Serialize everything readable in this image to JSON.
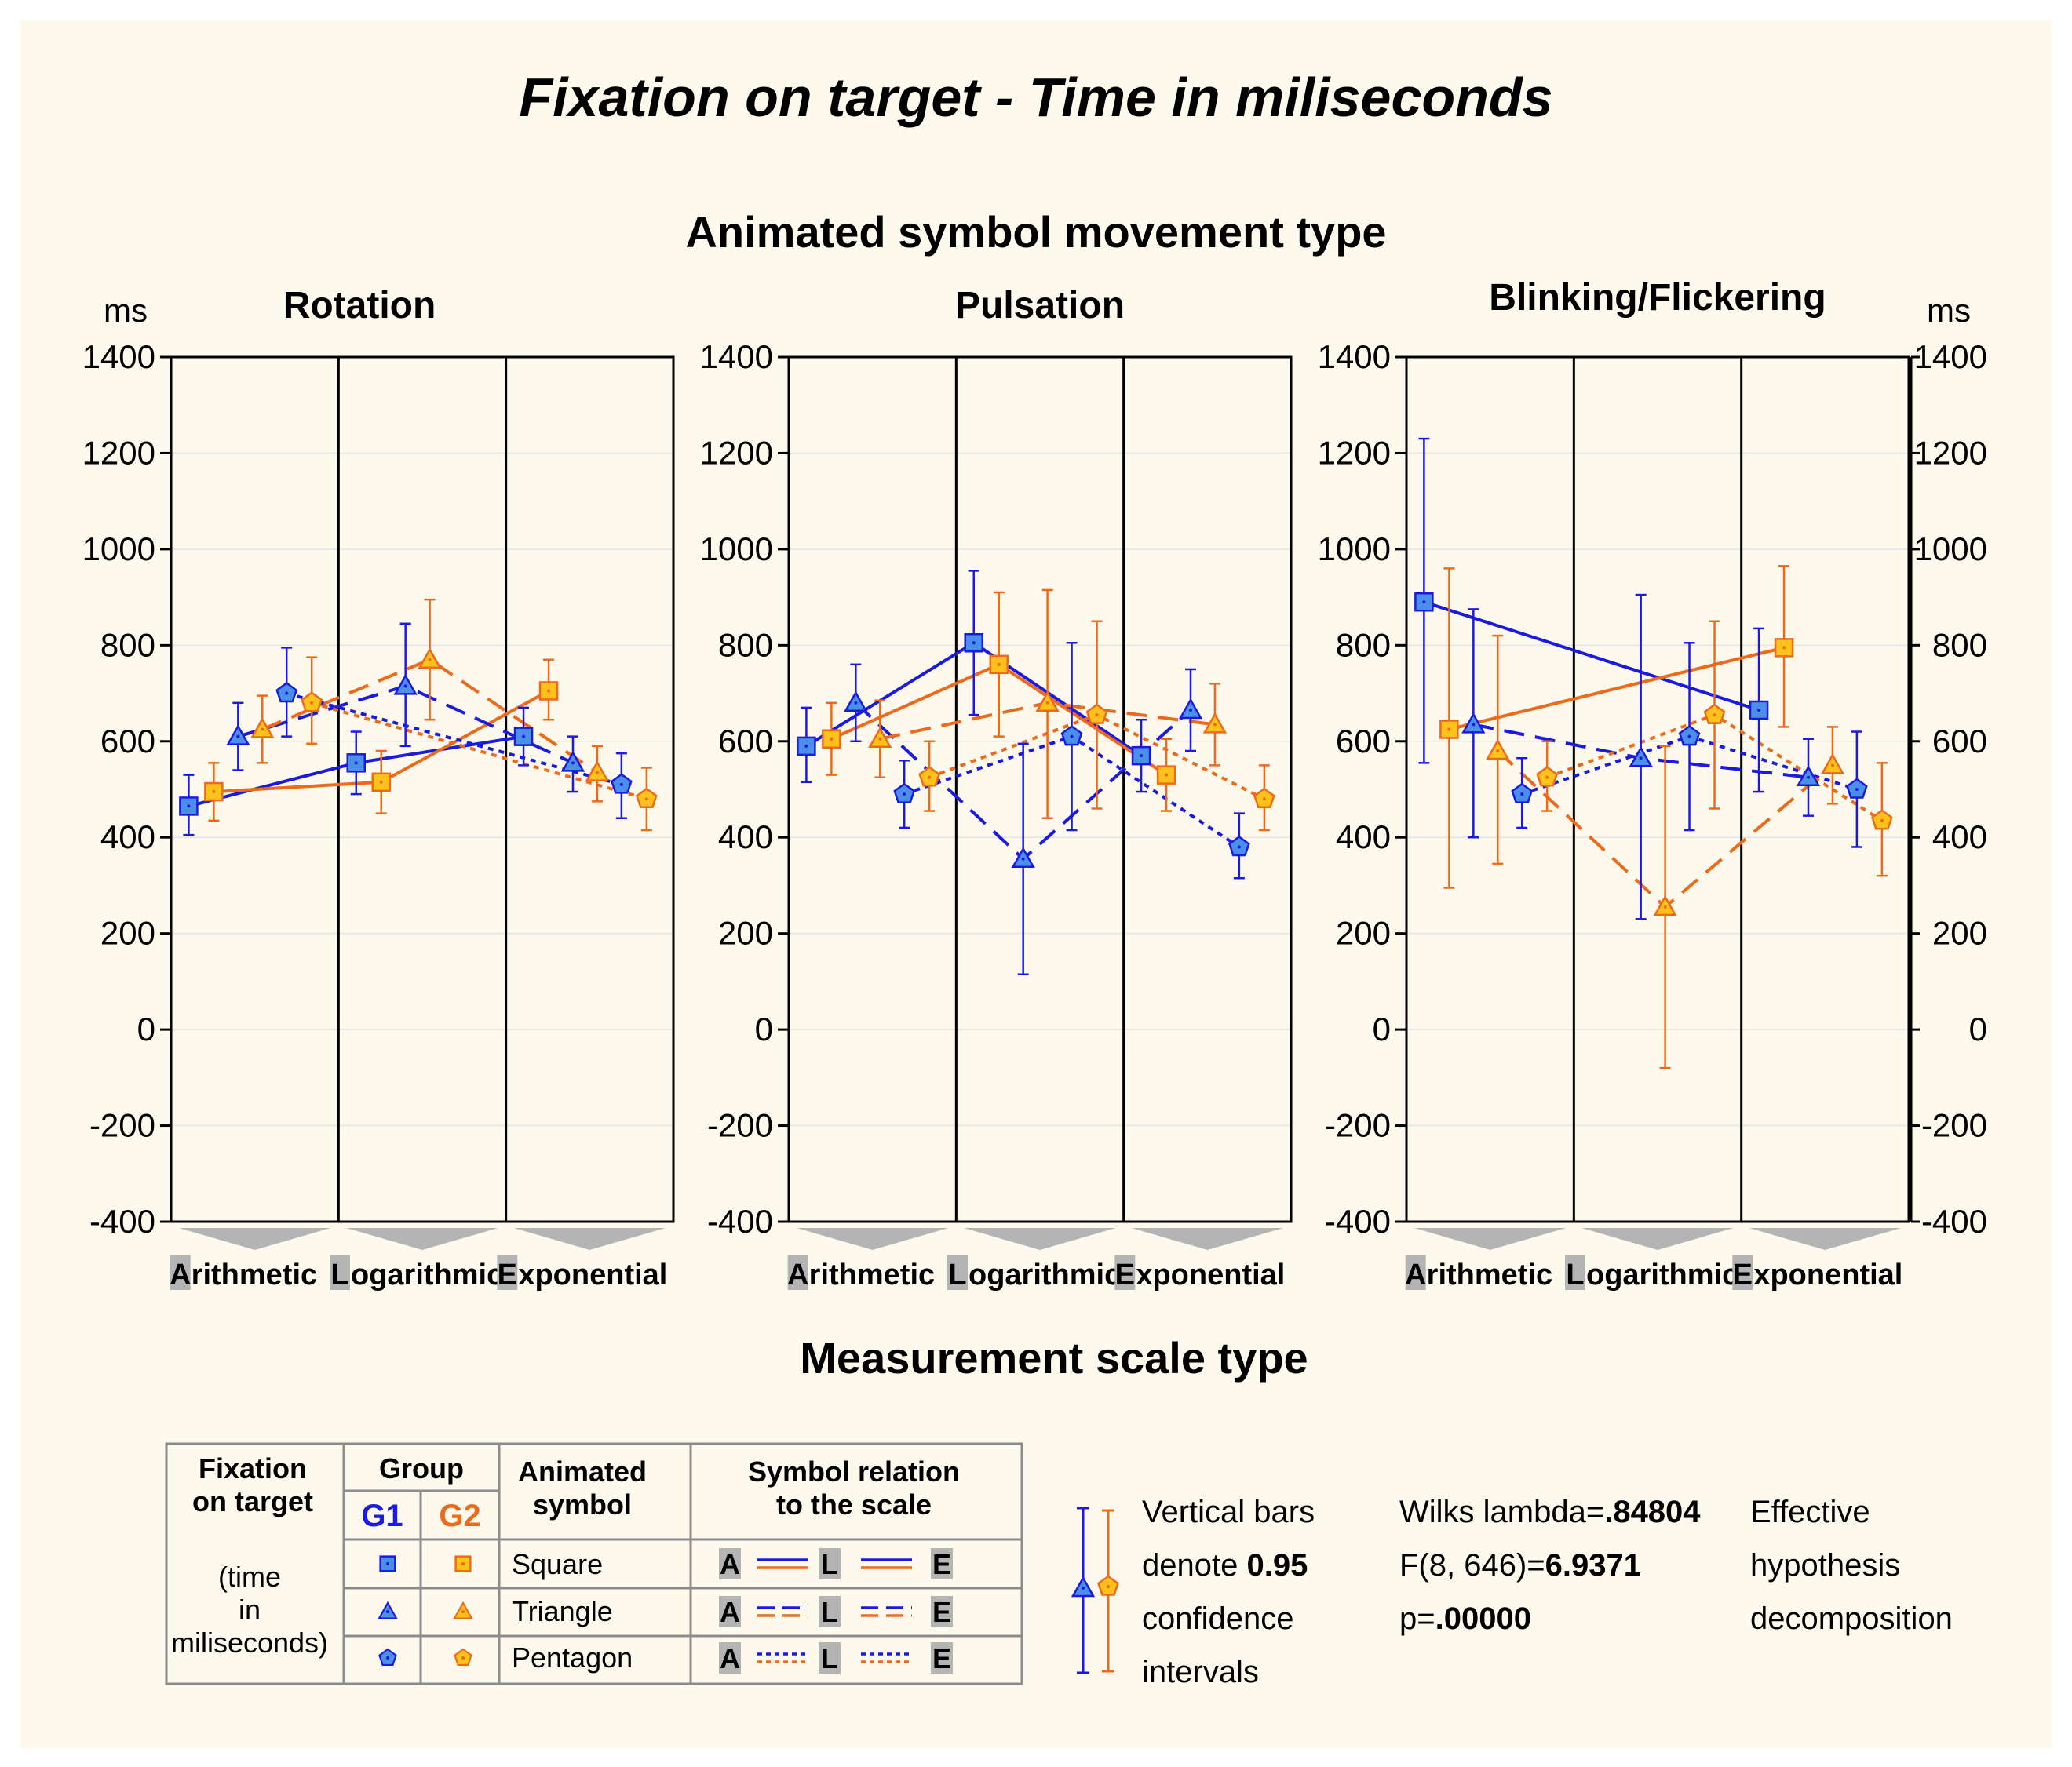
{
  "colors": {
    "g1": "#1a1ae0",
    "g2": "#ee6a1a",
    "g1_fill": "#4a90e8",
    "g2_fill": "#ffc21a",
    "background": "#fdf9ec",
    "scale_arrow": "#b4b4b4"
  },
  "title": "Fixation on target - Time in miliseconds",
  "supertitle": "Animated symbol movement type",
  "xlabel": "Measurement scale type",
  "y_unit": "ms",
  "legend": {
    "fixation_head_1": "Fixation",
    "fixation_head_2": "on target",
    "fixation_sub_1": "(time",
    "fixation_sub_2": "in",
    "fixation_sub_3": "miliseconds)",
    "group_head": "Group",
    "g1": "G1",
    "g2": "G2",
    "symbol_head_1": "Animated",
    "symbol_head_2": "symbol",
    "relation_head_1": "Symbol relation",
    "relation_head_2": "to the scale",
    "rows": [
      {
        "label": "Square",
        "marker": "square"
      },
      {
        "label": "Triangle",
        "marker": "triangle"
      },
      {
        "label": "Pentagon",
        "marker": "pentagon"
      }
    ],
    "relation_letters": [
      "A",
      "L",
      "E"
    ]
  },
  "notes": {
    "ci_line1": "Vertical bars",
    "ci_line2_pre": "denote ",
    "ci_line2_bold": "0.95",
    "ci_line3": "confidence",
    "ci_line4": "intervals",
    "wilks_pre": "Wilks lambda=",
    "wilks_val": ".84804",
    "f_pre": "F(8, 646)=",
    "f_val": "6.9371",
    "p_pre": "p=",
    "p_val": ".00000",
    "eff1": "Effective",
    "eff2": "hypothesis",
    "eff3": "decomposition"
  },
  "chart_data": {
    "type": "line",
    "y_range": [
      -400,
      1400
    ],
    "y_ticks": [
      "1400",
      "1200",
      "1000",
      "800",
      "600",
      "400",
      "200",
      "0",
      "-200",
      "-400"
    ],
    "scale_letters": [
      "A",
      "L",
      "E"
    ],
    "scale_rests": [
      "rithmetic",
      "ogarithmic",
      "xponential"
    ],
    "scale_types": [
      "Arithmetic",
      "Logarithmic",
      "Exponential"
    ],
    "panels": [
      {
        "title": "Rotation",
        "points": [
          {
            "scale": "Arithmetic",
            "symbol": "square",
            "group": "G1",
            "mean": 465,
            "lo": 405,
            "hi": 530
          },
          {
            "scale": "Arithmetic",
            "symbol": "square",
            "group": "G2",
            "mean": 495,
            "lo": 435,
            "hi": 555
          },
          {
            "scale": "Arithmetic",
            "symbol": "triangle",
            "group": "G1",
            "mean": 610,
            "lo": 540,
            "hi": 680
          },
          {
            "scale": "Arithmetic",
            "symbol": "triangle",
            "group": "G2",
            "mean": 625,
            "lo": 555,
            "hi": 695
          },
          {
            "scale": "Arithmetic",
            "symbol": "pentagon",
            "group": "G1",
            "mean": 700,
            "lo": 610,
            "hi": 795
          },
          {
            "scale": "Arithmetic",
            "symbol": "pentagon",
            "group": "G2",
            "mean": 680,
            "lo": 595,
            "hi": 775
          },
          {
            "scale": "Logarithmic",
            "symbol": "square",
            "group": "G1",
            "mean": 555,
            "lo": 490,
            "hi": 620
          },
          {
            "scale": "Logarithmic",
            "symbol": "square",
            "group": "G2",
            "mean": 515,
            "lo": 450,
            "hi": 580
          },
          {
            "scale": "Logarithmic",
            "symbol": "triangle",
            "group": "G1",
            "mean": 715,
            "lo": 590,
            "hi": 845
          },
          {
            "scale": "Logarithmic",
            "symbol": "triangle",
            "group": "G2",
            "mean": 770,
            "lo": 645,
            "hi": 895
          },
          {
            "scale": "Exponential",
            "symbol": "square",
            "group": "G1",
            "mean": 610,
            "lo": 550,
            "hi": 670
          },
          {
            "scale": "Exponential",
            "symbol": "square",
            "group": "G2",
            "mean": 705,
            "lo": 645,
            "hi": 770
          },
          {
            "scale": "Exponential",
            "symbol": "triangle",
            "group": "G1",
            "mean": 555,
            "lo": 495,
            "hi": 610
          },
          {
            "scale": "Exponential",
            "symbol": "triangle",
            "group": "G2",
            "mean": 535,
            "lo": 475,
            "hi": 590
          },
          {
            "scale": "Exponential",
            "symbol": "pentagon",
            "group": "G1",
            "mean": 510,
            "lo": 440,
            "hi": 575
          },
          {
            "scale": "Exponential",
            "symbol": "pentagon",
            "group": "G2",
            "mean": 480,
            "lo": 415,
            "hi": 545
          }
        ]
      },
      {
        "title": "Pulsation",
        "points": [
          {
            "scale": "Arithmetic",
            "symbol": "square",
            "group": "G1",
            "mean": 590,
            "lo": 515,
            "hi": 670
          },
          {
            "scale": "Arithmetic",
            "symbol": "square",
            "group": "G2",
            "mean": 605,
            "lo": 530,
            "hi": 680
          },
          {
            "scale": "Arithmetic",
            "symbol": "triangle",
            "group": "G1",
            "mean": 680,
            "lo": 600,
            "hi": 760
          },
          {
            "scale": "Arithmetic",
            "symbol": "triangle",
            "group": "G2",
            "mean": 605,
            "lo": 525,
            "hi": 685
          },
          {
            "scale": "Arithmetic",
            "symbol": "pentagon",
            "group": "G1",
            "mean": 490,
            "lo": 420,
            "hi": 560
          },
          {
            "scale": "Arithmetic",
            "symbol": "pentagon",
            "group": "G2",
            "mean": 525,
            "lo": 455,
            "hi": 600
          },
          {
            "scale": "Logarithmic",
            "symbol": "square",
            "group": "G1",
            "mean": 805,
            "lo": 655,
            "hi": 955
          },
          {
            "scale": "Logarithmic",
            "symbol": "square",
            "group": "G2",
            "mean": 760,
            "lo": 610,
            "hi": 910
          },
          {
            "scale": "Logarithmic",
            "symbol": "triangle",
            "group": "G1",
            "mean": 355,
            "lo": 115,
            "hi": 595
          },
          {
            "scale": "Logarithmic",
            "symbol": "triangle",
            "group": "G2",
            "mean": 680,
            "lo": 440,
            "hi": 915
          },
          {
            "scale": "Logarithmic",
            "symbol": "pentagon",
            "group": "G1",
            "mean": 610,
            "lo": 415,
            "hi": 805
          },
          {
            "scale": "Logarithmic",
            "symbol": "pentagon",
            "group": "G2",
            "mean": 655,
            "lo": 460,
            "hi": 850
          },
          {
            "scale": "Exponential",
            "symbol": "square",
            "group": "G1",
            "mean": 570,
            "lo": 495,
            "hi": 645
          },
          {
            "scale": "Exponential",
            "symbol": "square",
            "group": "G2",
            "mean": 530,
            "lo": 455,
            "hi": 605
          },
          {
            "scale": "Exponential",
            "symbol": "triangle",
            "group": "G1",
            "mean": 665,
            "lo": 580,
            "hi": 750
          },
          {
            "scale": "Exponential",
            "symbol": "triangle",
            "group": "G2",
            "mean": 635,
            "lo": 550,
            "hi": 720
          },
          {
            "scale": "Exponential",
            "symbol": "pentagon",
            "group": "G1",
            "mean": 380,
            "lo": 315,
            "hi": 450
          },
          {
            "scale": "Exponential",
            "symbol": "pentagon",
            "group": "G2",
            "mean": 480,
            "lo": 415,
            "hi": 550
          }
        ]
      },
      {
        "title": "Blinking/Flickering",
        "points": [
          {
            "scale": "Arithmetic",
            "symbol": "square",
            "group": "G1",
            "mean": 890,
            "lo": 555,
            "hi": 1230
          },
          {
            "scale": "Arithmetic",
            "symbol": "square",
            "group": "G2",
            "mean": 625,
            "lo": 295,
            "hi": 960
          },
          {
            "scale": "Arithmetic",
            "symbol": "triangle",
            "group": "G1",
            "mean": 635,
            "lo": 400,
            "hi": 875
          },
          {
            "scale": "Arithmetic",
            "symbol": "triangle",
            "group": "G2",
            "mean": 580,
            "lo": 345,
            "hi": 820
          },
          {
            "scale": "Arithmetic",
            "symbol": "pentagon",
            "group": "G1",
            "mean": 490,
            "lo": 420,
            "hi": 565
          },
          {
            "scale": "Arithmetic",
            "symbol": "pentagon",
            "group": "G2",
            "mean": 525,
            "lo": 455,
            "hi": 600
          },
          {
            "scale": "Logarithmic",
            "symbol": "triangle",
            "group": "G1",
            "mean": 565,
            "lo": 230,
            "hi": 905
          },
          {
            "scale": "Logarithmic",
            "symbol": "triangle",
            "group": "G2",
            "mean": 255,
            "lo": -80,
            "hi": 590
          },
          {
            "scale": "Logarithmic",
            "symbol": "pentagon",
            "group": "G1",
            "mean": 610,
            "lo": 415,
            "hi": 805
          },
          {
            "scale": "Logarithmic",
            "symbol": "pentagon",
            "group": "G2",
            "mean": 655,
            "lo": 460,
            "hi": 850
          },
          {
            "scale": "Exponential",
            "symbol": "square",
            "group": "G1",
            "mean": 665,
            "lo": 495,
            "hi": 835
          },
          {
            "scale": "Exponential",
            "symbol": "square",
            "group": "G2",
            "mean": 795,
            "lo": 630,
            "hi": 965
          },
          {
            "scale": "Exponential",
            "symbol": "triangle",
            "group": "G1",
            "mean": 525,
            "lo": 445,
            "hi": 605
          },
          {
            "scale": "Exponential",
            "symbol": "triangle",
            "group": "G2",
            "mean": 550,
            "lo": 470,
            "hi": 630
          },
          {
            "scale": "Exponential",
            "symbol": "pentagon",
            "group": "G1",
            "mean": 500,
            "lo": 380,
            "hi": 620
          },
          {
            "scale": "Exponential",
            "symbol": "pentagon",
            "group": "G2",
            "mean": 435,
            "lo": 320,
            "hi": 555
          }
        ]
      }
    ]
  }
}
